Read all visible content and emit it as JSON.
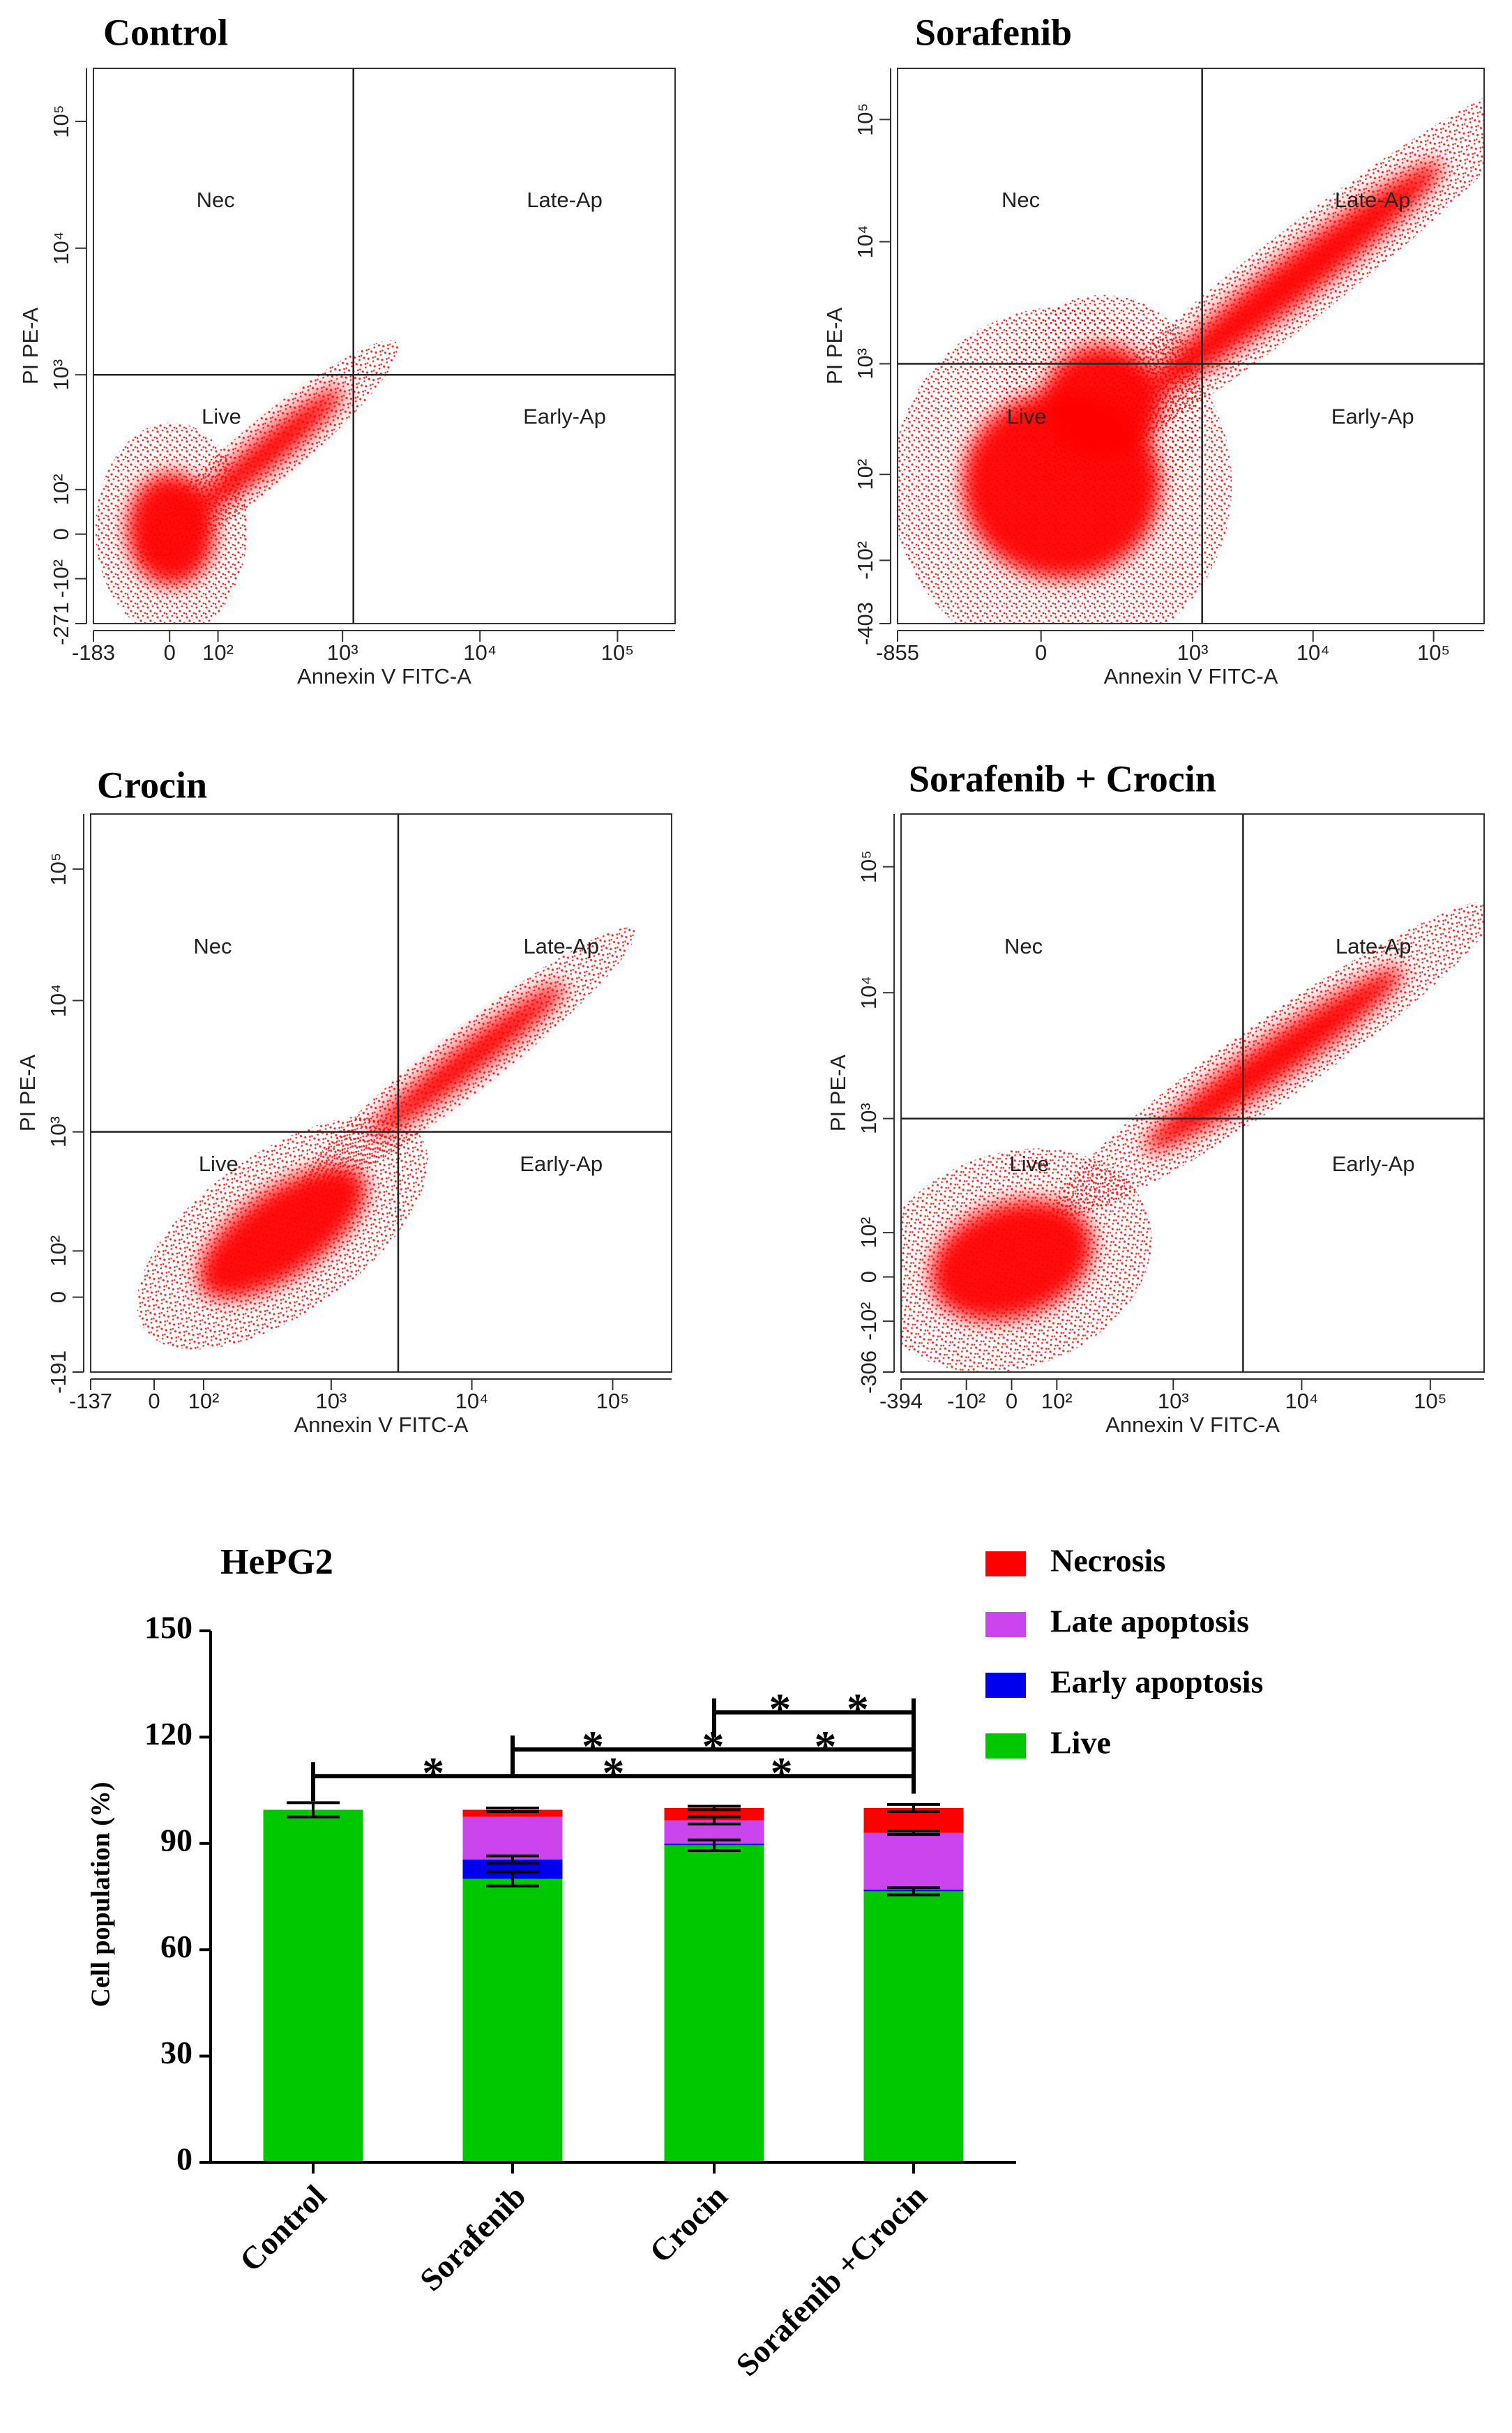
{
  "chart_data": [
    {
      "type": "scatter",
      "title": "Control",
      "xlabel": "Annexin V FITC-A",
      "ylabel": "PI PE-A",
      "quadrant_labels": [
        "Nec",
        "Late-Ap",
        "Live",
        "Early-Ap"
      ],
      "gate": [
        1200,
        1000
      ],
      "color": "#ff0000",
      "xlim": [
        -183,
        262144
      ],
      "ylim": [
        -271,
        262144
      ],
      "xticks": [
        -183,
        0,
        {
          "value": 100,
          "label": "10²"
        },
        {
          "value": 1000,
          "label": "10³"
        },
        {
          "value": 10000,
          "label": "10⁴"
        },
        {
          "value": 100000,
          "label": "10⁵"
        }
      ],
      "yticks": [
        -271,
        {
          "value": -100,
          "label": "-10²"
        },
        0,
        {
          "value": 100,
          "label": "10²"
        },
        {
          "value": 1000,
          "label": "10³"
        },
        {
          "value": 10000,
          "label": "10⁴"
        },
        {
          "value": 100000,
          "label": "10⁵"
        }
      ]
    },
    {
      "type": "scatter",
      "title": "Sorafenib",
      "xlabel": "Annexin V FITC-A",
      "ylabel": "PI PE-A",
      "quadrant_labels": [
        "Nec",
        "Late-Ap",
        "Live",
        "Early-Ap"
      ],
      "gate": [
        1200,
        1000
      ],
      "color": "#ff0000",
      "xlim": [
        -855,
        262144
      ],
      "ylim": [
        -403,
        262144
      ],
      "xticks": [
        -855,
        0,
        {
          "value": 1000,
          "label": "10³"
        },
        {
          "value": 10000,
          "label": "10⁴"
        },
        {
          "value": 100000,
          "label": "10⁵"
        }
      ],
      "yticks": [
        -403,
        {
          "value": -100,
          "label": "-10²"
        },
        {
          "value": 100,
          "label": "10²"
        },
        {
          "value": 1000,
          "label": "10³"
        },
        {
          "value": 10000,
          "label": "10⁴"
        },
        {
          "value": 100000,
          "label": "10⁵"
        }
      ]
    },
    {
      "type": "scatter",
      "title": "Crocin",
      "xlabel": "Annexin V FITC-A",
      "ylabel": "PI PE-A",
      "quadrant_labels": [
        "Nec",
        "Late-Ap",
        "Live",
        "Early-Ap"
      ],
      "gate": [
        3000,
        1000
      ],
      "color": "#ff0000",
      "xlim": [
        -137,
        262144
      ],
      "ylim": [
        -191,
        262144
      ],
      "xticks": [
        -137,
        0,
        {
          "value": 100,
          "label": "10²"
        },
        {
          "value": 1000,
          "label": "10³"
        },
        {
          "value": 10000,
          "label": "10⁴"
        },
        {
          "value": 100000,
          "label": "10⁵"
        }
      ],
      "yticks": [
        -191,
        0,
        {
          "value": 100,
          "label": "10²"
        },
        {
          "value": 1000,
          "label": "10³"
        },
        {
          "value": 10000,
          "label": "10⁴"
        },
        {
          "value": 100000,
          "label": "10⁵"
        }
      ]
    },
    {
      "type": "scatter",
      "title": "Sorafenib + Crocin",
      "xlabel": "Annexin V FITC-A",
      "ylabel": "PI PE-A",
      "quadrant_labels": [
        "Nec",
        "Late-Ap",
        "Live",
        "Early-Ap"
      ],
      "gate": [
        3500,
        1000
      ],
      "color": "#ff0000",
      "xlim": [
        -394,
        262144
      ],
      "ylim": [
        -306,
        262144
      ],
      "xticks": [
        -394,
        {
          "value": -100,
          "label": "-10²"
        },
        0,
        {
          "value": 100,
          "label": "10²"
        },
        {
          "value": 1000,
          "label": "10³"
        },
        {
          "value": 10000,
          "label": "10⁴"
        },
        {
          "value": 100000,
          "label": "10⁵"
        }
      ],
      "yticks": [
        -306,
        {
          "value": -100,
          "label": "-10²"
        },
        0,
        {
          "value": 100,
          "label": "10²"
        },
        {
          "value": 1000,
          "label": "10³"
        },
        {
          "value": 10000,
          "label": "10⁴"
        },
        {
          "value": 100000,
          "label": "10⁵"
        }
      ]
    },
    {
      "type": "bar",
      "stacked": true,
      "title": "HePG2",
      "ylabel": "Cell population (%)",
      "categories": [
        "Control",
        "Sorafenib",
        "Crocin",
        "Sorafenib +Crocin"
      ],
      "series": [
        {
          "name": "Live",
          "color": "#00c800",
          "values": [
            99.5,
            80,
            89.5,
            76.5
          ],
          "errors": [
            2,
            2,
            1.5,
            1
          ]
        },
        {
          "name": "Early apoptosis",
          "color": "#0000ee",
          "values": [
            0,
            5.5,
            0.5,
            0.5
          ],
          "errors": [
            null,
            1,
            null,
            null
          ]
        },
        {
          "name": "Late apoptosis",
          "color": "#cc44ee",
          "values": [
            0,
            12,
            6.5,
            16
          ],
          "errors": [
            null,
            null,
            1,
            0.5
          ]
        },
        {
          "name": "Necrosis",
          "color": "#ff0000",
          "values": [
            0,
            2,
            3.5,
            7
          ],
          "errors": [
            null,
            0.5,
            0.5,
            1
          ]
        }
      ],
      "ylim": [
        0,
        150
      ],
      "yticks": [
        0,
        30,
        60,
        90,
        120,
        150
      ],
      "legend": "top-right",
      "annotations": [
        {
          "from": 0,
          "to": 3,
          "y": 109,
          "stars": [
            {
              "text": "*",
              "color": "#ff0000"
            },
            {
              "text": "*",
              "color": "#cc33ff"
            },
            {
              "text": "*",
              "color": "#22dd22"
            }
          ]
        },
        {
          "from": 1,
          "to": 3,
          "y": 116.5,
          "stars": [
            {
              "text": "*",
              "color": "#ff0000"
            },
            {
              "text": "*",
              "color": "#cc33ff"
            },
            {
              "text": "*",
              "color": "#22dd22"
            }
          ]
        },
        {
          "from": 2,
          "to": 3,
          "y": 127,
          "stars": [
            {
              "text": "*",
              "color": "#ff0000"
            },
            {
              "text": "*",
              "color": "#cc33ff"
            }
          ]
        }
      ]
    }
  ]
}
